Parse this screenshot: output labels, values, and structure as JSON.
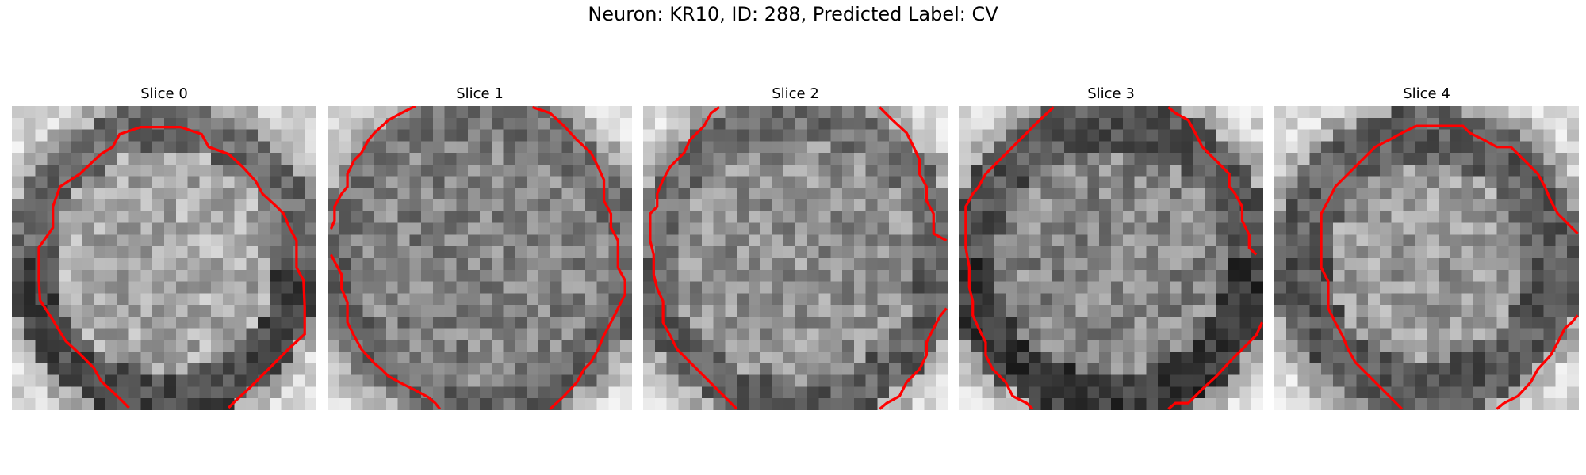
{
  "title": "Neuron: KR10, ID: 288, Predicted Label: CV",
  "colors": {
    "contour": "#ff0000"
  },
  "panels": [
    {
      "title": "Slice 0"
    },
    {
      "title": "Slice 1"
    },
    {
      "title": "Slice 2"
    },
    {
      "title": "Slice 3"
    },
    {
      "title": "Slice 4"
    }
  ]
}
